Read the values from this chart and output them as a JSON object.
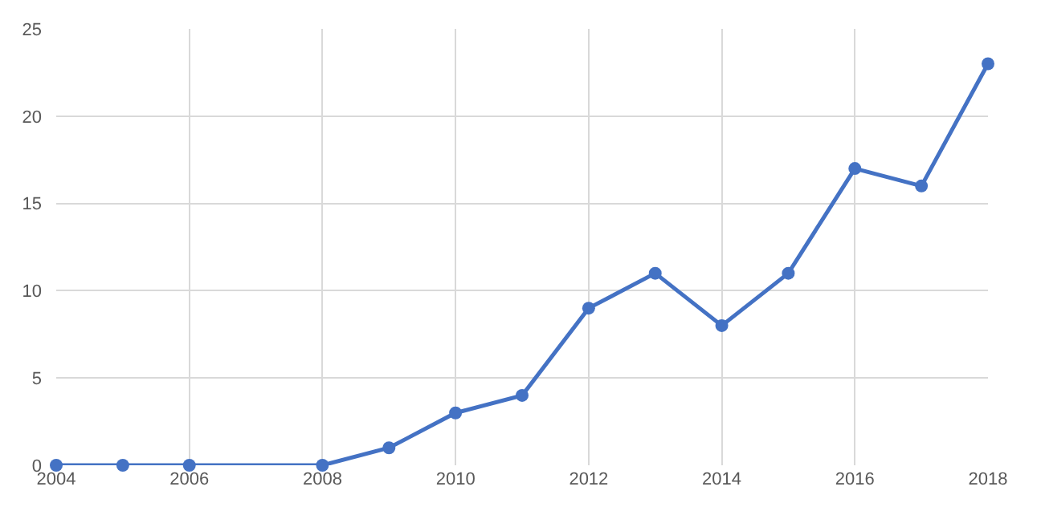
{
  "chart_data": {
    "type": "line",
    "x": [
      2004,
      2005,
      2006,
      2008,
      2009,
      2010,
      2011,
      2012,
      2013,
      2014,
      2015,
      2016,
      2017,
      2018
    ],
    "series": [
      {
        "color": "#4472c4",
        "values": [
          0,
          0,
          0,
          0,
          1,
          3,
          4,
          9,
          11,
          8,
          11,
          17,
          16,
          23
        ]
      }
    ],
    "xlim": [
      2004,
      2018
    ],
    "xticks": [
      2004,
      2006,
      2008,
      2010,
      2012,
      2014,
      2016,
      2018
    ],
    "ylim": [
      0,
      25
    ],
    "yticks": [
      0,
      5,
      10,
      15,
      20,
      25
    ],
    "grid": true,
    "marker": "circle",
    "line_style": "solid",
    "legend": false
  }
}
